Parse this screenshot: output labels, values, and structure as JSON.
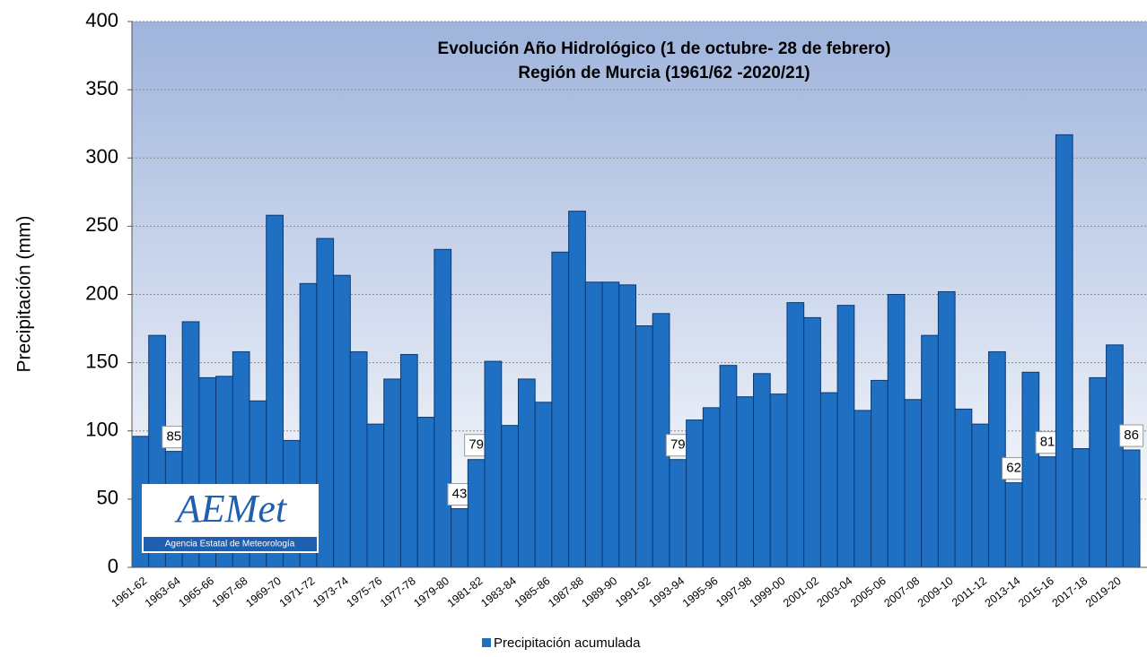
{
  "chart_data": {
    "type": "bar",
    "title": [
      "Evolución Año Hidrológico (1 de octubre- 28 de febrero)",
      "Región de Murcia (1961/62 -2020/21)"
    ],
    "y_label": "Precipitación (mm)",
    "logo": {
      "text": "AEMet",
      "subtitle": "Agencia Estatal de Meteorología"
    },
    "categories": [
      "1961-62",
      null,
      "1963-64",
      null,
      "1965-66",
      null,
      "1967-68",
      null,
      "1969-70",
      null,
      "1971-72",
      null,
      "1973-74",
      null,
      "1975-76",
      null,
      "1977-78",
      null,
      "1979-80",
      null,
      "1981-82",
      null,
      "1983-84",
      null,
      "1985-86",
      null,
      "1987-88",
      null,
      "1989-90",
      null,
      "1991-92",
      null,
      "1993-94",
      null,
      "1995-96",
      null,
      "1997-98",
      null,
      "1999-00",
      null,
      "2001-02",
      null,
      "2003-04",
      null,
      "2005-06",
      null,
      "2007-08",
      null,
      "2009-10",
      null,
      "2011-12",
      null,
      "2013-14",
      null,
      "2015-16",
      null,
      "2017-18",
      null,
      "2019-20",
      null
    ],
    "series": [
      {
        "name": "Precipitación acumulada",
        "color": "#1f6fc2",
        "values": [
          96,
          170,
          85,
          180,
          139,
          140,
          158,
          122,
          258,
          93,
          208,
          241,
          214,
          158,
          105,
          138,
          156,
          110,
          233,
          43,
          79,
          151,
          104,
          138,
          121,
          231,
          261,
          209,
          209,
          207,
          177,
          186,
          79,
          108,
          117,
          148,
          125,
          142,
          127,
          194,
          183,
          128,
          192,
          115,
          137,
          200,
          123,
          170,
          202,
          116,
          105,
          158,
          62,
          143,
          81,
          317,
          87,
          139,
          163,
          86
        ],
        "value_labels": [
          null,
          null,
          "85",
          null,
          null,
          null,
          null,
          null,
          null,
          null,
          null,
          null,
          null,
          null,
          null,
          null,
          null,
          null,
          null,
          "43",
          "79",
          null,
          null,
          null,
          null,
          null,
          null,
          null,
          null,
          null,
          null,
          null,
          "79",
          null,
          null,
          null,
          null,
          null,
          null,
          null,
          null,
          null,
          null,
          null,
          null,
          null,
          null,
          null,
          null,
          null,
          null,
          null,
          "62",
          null,
          "81",
          null,
          null,
          null,
          null,
          "86"
        ]
      }
    ],
    "ylim": [
      0,
      400
    ],
    "yticks": [
      0,
      50,
      100,
      150,
      200,
      250,
      300,
      350,
      400
    ],
    "grid": true,
    "legend": "bottom"
  }
}
